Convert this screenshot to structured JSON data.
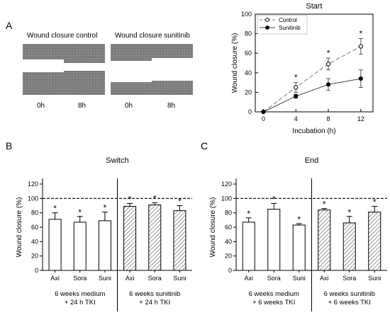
{
  "panel_letters": {
    "a": "A",
    "b": "B",
    "c": "C"
  },
  "micrographs": {
    "control_title": "Wound closure control",
    "sunitinib_title": "Wound closure sunitinib",
    "time_labels": [
      "0h",
      "8h",
      "0h",
      "8h"
    ]
  },
  "colors": {
    "bar_fill": "#ffffff",
    "hatch": "#555555",
    "axis": "#000000"
  },
  "chart_data": [
    {
      "type": "line",
      "title": "Start",
      "xlabel": "Incubation (h)",
      "ylabel": "Wound closure (%)",
      "xlim": [
        -1,
        13.5
      ],
      "ylim": [
        0,
        100
      ],
      "x_ticks": [
        0,
        4,
        8,
        12
      ],
      "y_ticks": [
        0,
        20,
        40,
        60,
        80,
        100
      ],
      "legend_position": "top-left",
      "series": [
        {
          "name": "Control",
          "style": "dashed, open circles",
          "x": [
            0,
            4,
            8,
            12
          ],
          "y": [
            0,
            25,
            49,
            67
          ],
          "err": [
            0,
            5,
            6,
            8
          ]
        },
        {
          "name": "Sunitinib",
          "style": "solid, filled circles",
          "x": [
            0,
            4,
            8,
            12
          ],
          "y": [
            0,
            16,
            28,
            34
          ],
          "err": [
            0,
            2,
            6,
            9
          ]
        }
      ],
      "significance": {
        "x": [
          4,
          8,
          12
        ],
        "label": "*"
      }
    },
    {
      "type": "bar",
      "title": "Switch",
      "ylabel": "Wound closure (%)",
      "ylim": [
        0,
        120
      ],
      "y_ticks": [
        0,
        20,
        40,
        60,
        80,
        100,
        120
      ],
      "reference_line": 100,
      "groups": [
        {
          "label_line1": "6 weeks medium",
          "label_line2": "+ 24 h TKI",
          "categories": [
            "Axi",
            "Sora",
            "Suni"
          ],
          "values": [
            71,
            67,
            69
          ],
          "errors": [
            9,
            8,
            12
          ],
          "hatched": false
        },
        {
          "label_line1": "6 weeks sunitinib",
          "label_line2": "+ 24 h TKI",
          "categories": [
            "Axi",
            "Sora",
            "Suni"
          ],
          "values": [
            89,
            91,
            83
          ],
          "errors": [
            4,
            3,
            7
          ],
          "hatched": true
        }
      ],
      "significance_label": "*"
    },
    {
      "type": "bar",
      "title": "End",
      "ylabel": "Wound closure (%)",
      "ylim": [
        0,
        120
      ],
      "y_ticks": [
        0,
        20,
        40,
        60,
        80,
        100,
        120
      ],
      "reference_line": 100,
      "groups": [
        {
          "label_line1": "6 weeks medium",
          "label_line2": "+ 6 weeks TKI",
          "categories": [
            "Axi",
            "Sora",
            "Suni"
          ],
          "values": [
            67,
            85,
            63
          ],
          "errors": [
            6,
            8,
            2
          ],
          "hatched": false
        },
        {
          "label_line1": "6 weeks sunitinib",
          "label_line2": "+ 6 weeks TKI",
          "categories": [
            "Axi",
            "Sora",
            "Suni"
          ],
          "values": [
            84,
            66,
            81
          ],
          "errors": [
            2,
            9,
            8
          ],
          "hatched": true
        }
      ],
      "significance_label": "*"
    }
  ]
}
